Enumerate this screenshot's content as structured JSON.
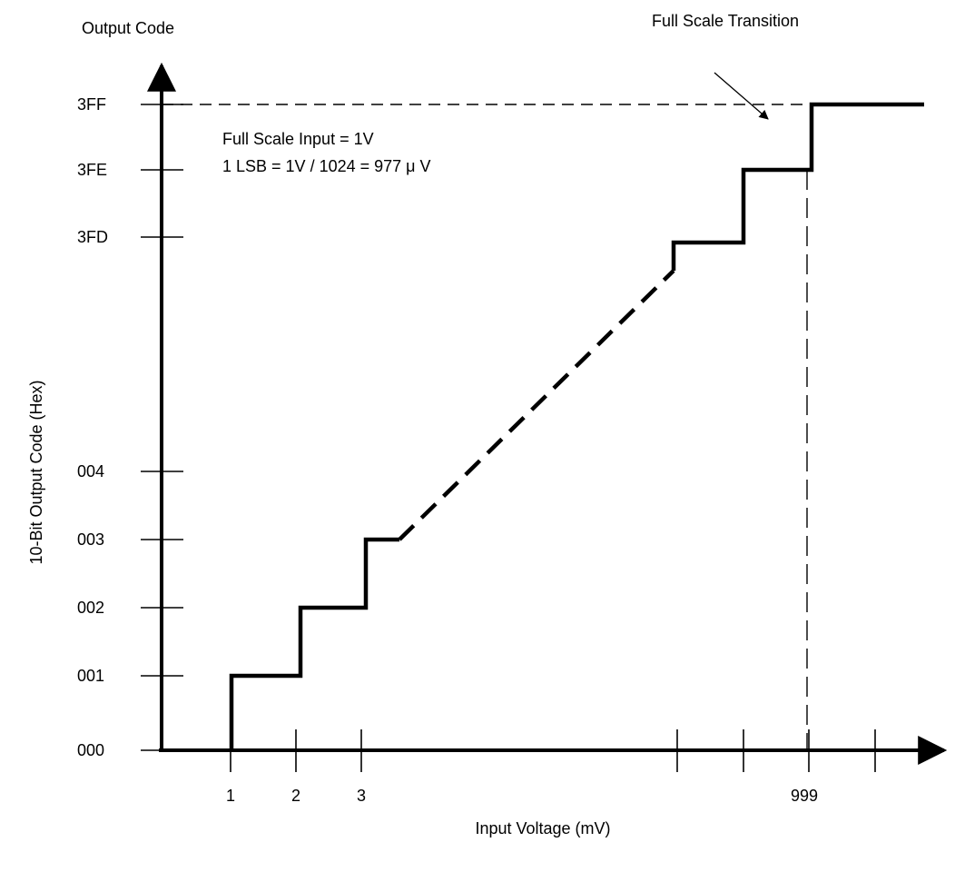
{
  "chart_data": {
    "type": "line",
    "title": "",
    "xlabel": "Input Voltage (mV)",
    "ylabel": "10-Bit Output Code (Hex)",
    "y_axis_header": "Output Code",
    "annotations": {
      "transition": "Full Scale Transition",
      "full_scale": "Full Scale Input = 1V",
      "lsb": "1 LSB = 1V / 1024 = 977 μ V"
    },
    "x_ticks": [
      "1",
      "2",
      "3",
      "",
      "",
      "999",
      ""
    ],
    "y_ticks": [
      "000",
      "001",
      "002",
      "003",
      "004",
      "3FD",
      "3FE",
      "3FF"
    ],
    "series": [
      {
        "style": "solid",
        "points": [
          [
            1,
            "000"
          ],
          [
            1,
            "001"
          ],
          [
            2,
            "001"
          ],
          [
            2,
            "002"
          ],
          [
            3,
            "002"
          ],
          [
            3,
            "003"
          ],
          [
            3.5,
            "003"
          ]
        ]
      },
      {
        "style": "dashed",
        "points": [
          [
            3.5,
            "003"
          ],
          [
            997.5,
            "3FD-"
          ]
        ]
      },
      {
        "style": "solid",
        "points": [
          [
            997.5,
            "3FD-"
          ],
          [
            997.5,
            "3FD"
          ],
          [
            998,
            "3FD"
          ],
          [
            998,
            "3FE"
          ],
          [
            999,
            "3FE"
          ],
          [
            999,
            "3FF"
          ],
          [
            1000.7,
            "3FF"
          ]
        ]
      }
    ],
    "guides": {
      "full_scale_code": "3FF",
      "full_scale_voltage": 999
    }
  }
}
